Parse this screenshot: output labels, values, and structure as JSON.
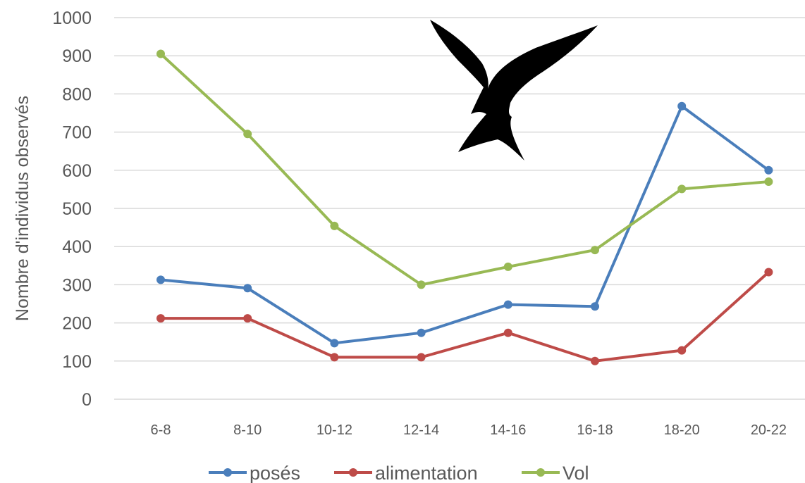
{
  "chart_data": {
    "type": "line",
    "ylabel": "Nombre d'individus observés",
    "xlabel": "",
    "ylim": [
      0,
      1000
    ],
    "yticks": [
      0,
      100,
      200,
      300,
      400,
      500,
      600,
      700,
      800,
      900,
      1000
    ],
    "categories": [
      "6-8",
      "8-10",
      "10-12",
      "12-14",
      "14-16",
      "16-18",
      "18-20",
      "20-22"
    ],
    "grid": "horizontal",
    "legend_position": "bottom",
    "series": [
      {
        "name": "posés",
        "color": "#4a7ebb",
        "values": [
          313,
          291,
          147,
          174,
          248,
          243,
          768,
          600
        ]
      },
      {
        "name": "alimentation",
        "color": "#be4b48",
        "values": [
          212,
          212,
          110,
          110,
          174,
          100,
          128,
          333
        ]
      },
      {
        "name": "Vol",
        "color": "#98b954",
        "values": [
          905,
          695,
          454,
          300,
          347,
          391,
          551,
          570
        ]
      }
    ],
    "decoration": "bird-silhouette"
  }
}
